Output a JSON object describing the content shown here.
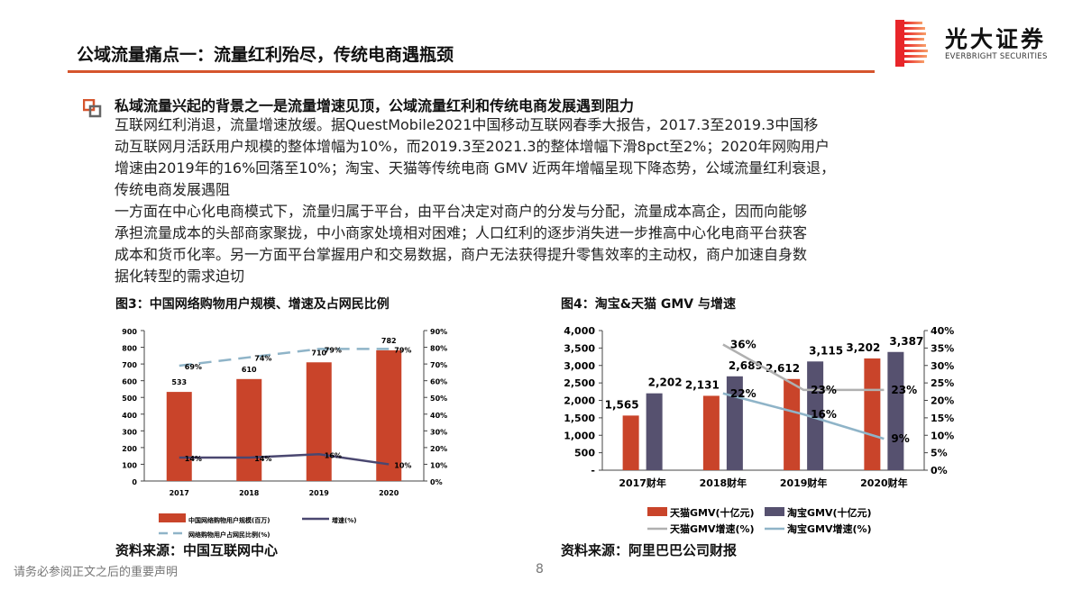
{
  "page": {
    "title": "公域流量痛点一：流量红利殆尽，传统电商遇瓶颈",
    "page_number": "8",
    "footer": "请务必参阅正文之后的重要声明"
  },
  "logo": {
    "name_cn": "光大证券",
    "name_en": "EVERBRIGHT SECURITIES"
  },
  "section": {
    "heading": "私域流量兴起的背景之一是流量增速见顶，公域流量红利和传统电商发展遇到阻力",
    "lines": [
      "互联网红利消退，流量增速放缓。据QuestMobile2021中国移动互联网春季大报告，2017.3至2019.3中国移",
      "动互联网月活跃用户规模的整体增幅为10%，而2019.3至2021.3的整体增幅下滑8pct至2%；2020年网购用户",
      "增速由2019年的16%回落至10%；淘宝、天猫等传统电商 GMV 近两年增幅呈现下降态势，公域流量红利衰退，",
      "传统电商发展遇阻",
      "一方面在中心化电商模式下，流量归属于平台，由平台决定对商户的分发与分配，流量成本高企，因而向能够",
      "承担流量成本的头部商家聚拢，中小商家处境相对困难；人口红利的逐步消失进一步推高中心化电商平台获客",
      "成本和货币化率。另一方面平台掌握用户和交易数据，商户无法获得提升零售效率的主动权，商户加速自身数",
      "据化转型的需求迫切"
    ]
  },
  "colors": {
    "accent": "#d5552d",
    "bar_red": "#c9442a",
    "bar_purple": "#56516f",
    "line_dark": "#4a4770",
    "line_lightblue": "#8fb4c8",
    "line_gray": "#b0b0b0"
  },
  "chart_data": [
    {
      "type": "bar",
      "title": "图3：中国网络购物用户规模、增速及占网民比例",
      "source": "资料来源：中国互联网中心",
      "categories": [
        "2017",
        "2018",
        "2019",
        "2020"
      ],
      "ylim": [
        0,
        900
      ],
      "yticks": [
        "0",
        "100",
        "200",
        "300",
        "400",
        "500",
        "600",
        "700",
        "800",
        "900"
      ],
      "y2lim": [
        0,
        90
      ],
      "y2ticks": [
        "0%",
        "10%",
        "20%",
        "30%",
        "40%",
        "50%",
        "60%",
        "70%",
        "80%",
        "90%"
      ],
      "series": [
        {
          "name": "中国网络购物用户规模(百万)",
          "kind": "bar",
          "axis": "left",
          "values": [
            533,
            610,
            710,
            782
          ],
          "labels": [
            "533",
            "610",
            "710",
            "782"
          ]
        },
        {
          "name": "增速(%)",
          "kind": "line",
          "axis": "right",
          "values": [
            14,
            14,
            16,
            10
          ],
          "labels": [
            "14%",
            "14%",
            "16%",
            "10%"
          ]
        },
        {
          "name": "网络购物用户占网民比例(%)",
          "kind": "dash",
          "axis": "right",
          "values": [
            69,
            74,
            79,
            79
          ],
          "labels": [
            "69%",
            "74%",
            "79%",
            "79%"
          ]
        }
      ]
    },
    {
      "type": "bar",
      "title": "图4：淘宝&天猫 GMV 与增速",
      "source": "资料来源：阿里巴巴公司财报",
      "categories": [
        "2017财年",
        "2018财年",
        "2019财年",
        "2020财年"
      ],
      "ylim": [
        0,
        4000
      ],
      "yticks": [
        "-",
        "500",
        "1,000",
        "1,500",
        "2,000",
        "2,500",
        "3,000",
        "3,500",
        "4,000"
      ],
      "y2lim": [
        0,
        40
      ],
      "y2ticks": [
        "0%",
        "5%",
        "10%",
        "15%",
        "20%",
        "25%",
        "30%",
        "35%",
        "40%"
      ],
      "series": [
        {
          "name": "天猫GMV(十亿元)",
          "kind": "bar",
          "axis": "left",
          "values": [
            1565,
            2131,
            2612,
            3202
          ],
          "labels": [
            "1,565",
            "2,131",
            "2,612",
            "3,202"
          ]
        },
        {
          "name": "淘宝GMV(十亿元)",
          "kind": "bar",
          "axis": "left",
          "values": [
            2202,
            2689,
            3115,
            3387
          ],
          "labels": [
            "2,202",
            "2,689",
            "3,115",
            "3,387"
          ]
        },
        {
          "name": "天猫GMV增速(%)",
          "kind": "line",
          "axis": "right",
          "values": [
            null,
            36,
            23,
            23
          ],
          "labels": [
            null,
            "36%",
            "23%",
            "23%"
          ]
        },
        {
          "name": "淘宝GMV增速(%)",
          "kind": "line",
          "axis": "right",
          "values": [
            null,
            22,
            16,
            9
          ],
          "labels": [
            null,
            "22%",
            "16%",
            "9%"
          ]
        }
      ]
    }
  ]
}
